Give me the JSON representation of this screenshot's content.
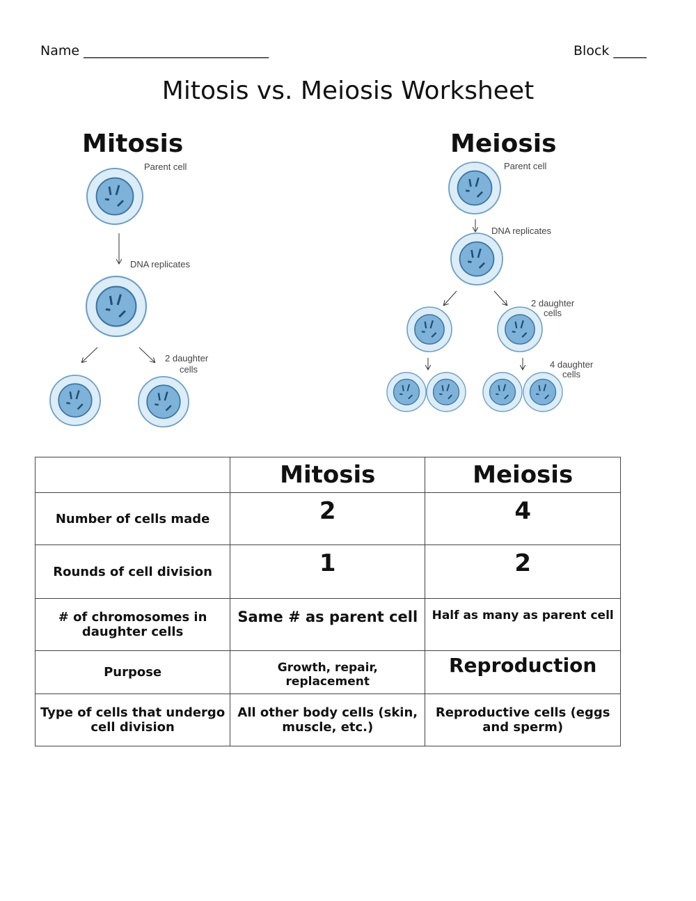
{
  "header": {
    "name_label": "Name ____________________________",
    "block_label": "Block _____"
  },
  "title": "Mitosis vs. Meiosis Worksheet",
  "diagram": {
    "mitosis": {
      "heading": "Mitosis",
      "parent": "Parent cell",
      "replicates": "DNA replicates",
      "daughters_1": "2 daughter",
      "daughters_2": "cells"
    },
    "meiosis": {
      "heading": "Meiosis",
      "parent": "Parent cell",
      "replicates": "DNA replicates",
      "daughters_1": "2 daughter",
      "daughters_2": "cells",
      "daughters4_1": "4 daughter",
      "daughters4_2": "cells"
    },
    "colors": {
      "cell_outer": "#dcedf8",
      "cell_outer_stroke": "#6f9fc4",
      "nucleus": "#7fb2d8",
      "nucleus_stroke": "#3b77a5"
    }
  },
  "table": {
    "headers": [
      "",
      "Mitosis",
      "Meiosis"
    ],
    "rows": [
      {
        "label": "Number of cells made",
        "mitosis": "2",
        "meiosis": "4"
      },
      {
        "label": "Rounds of cell division",
        "mitosis": "1",
        "meiosis": "2"
      },
      {
        "label": "# of chromosomes in daughter cells",
        "mitosis": "Same # as parent cell",
        "meiosis": "Half as many as parent cell"
      },
      {
        "label": "Purpose",
        "mitosis": "Growth, repair, replacement",
        "meiosis": "Reproduction"
      },
      {
        "label": "Type of cells that undergo cell division",
        "mitosis": "All other body cells (skin, muscle, etc.)",
        "meiosis": "Reproductive cells (eggs and sperm)"
      }
    ]
  }
}
